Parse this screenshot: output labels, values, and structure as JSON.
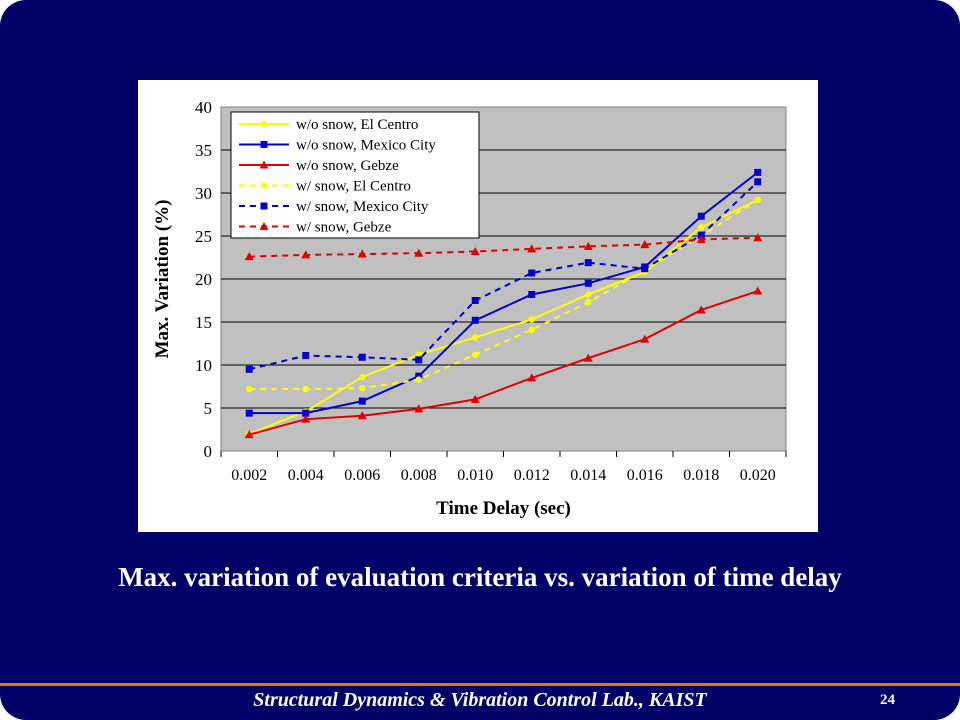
{
  "slide": {
    "caption": "Max. variation of evaluation criteria vs. variation of time delay",
    "footer": "Structural Dynamics & Vibration Control Lab., KAIST",
    "page_number": "24"
  },
  "colors": {
    "background": "#000066",
    "plot_area": "#c0c0c0",
    "footer_line": "#e07810",
    "yellow": "#ffff00",
    "blue": "#0000cc",
    "red": "#dd0000"
  },
  "chart_data": {
    "type": "line",
    "title": "",
    "xlabel": "Time Delay (sec)",
    "ylabel": "Max. Variation (%)",
    "categories": [
      "0.002",
      "0.004",
      "0.006",
      "0.008",
      "0.010",
      "0.012",
      "0.014",
      "0.016",
      "0.018",
      "0.020"
    ],
    "yticks": [
      "0",
      "5",
      "10",
      "15",
      "20",
      "25",
      "30",
      "35",
      "40"
    ],
    "ylim": [
      0,
      40
    ],
    "grid": "horizontal",
    "legend_position": "top-left",
    "series": [
      {
        "name": "w/o snow, El Centro",
        "color": "#ffff00",
        "style": "solid",
        "marker": "circle",
        "values": [
          2.0,
          4.6,
          8.6,
          11.2,
          13.2,
          15.3,
          18.2,
          20.8,
          26.0,
          29.2
        ]
      },
      {
        "name": "w/o snow, Mexico City",
        "color": "#0000cc",
        "style": "solid",
        "marker": "square",
        "values": [
          4.4,
          4.4,
          5.8,
          8.7,
          15.2,
          18.2,
          19.5,
          21.4,
          27.3,
          32.4
        ]
      },
      {
        "name": "w/o snow, Gebze",
        "color": "#dd0000",
        "style": "solid",
        "marker": "triangle",
        "values": [
          1.9,
          3.7,
          4.1,
          4.9,
          6.0,
          8.5,
          10.8,
          13.0,
          16.4,
          18.6
        ]
      },
      {
        "name": "w/ snow, El Centro",
        "color": "#ffff00",
        "style": "dashed",
        "marker": "circle",
        "values": [
          7.2,
          7.2,
          7.3,
          8.3,
          11.2,
          14.1,
          17.3,
          21.0,
          25.0,
          29.2
        ]
      },
      {
        "name": "w/ snow, Mexico City",
        "color": "#0000cc",
        "style": "dashed",
        "marker": "square",
        "values": [
          9.5,
          11.1,
          10.9,
          10.6,
          17.5,
          20.7,
          21.9,
          21.2,
          25.1,
          31.3
        ]
      },
      {
        "name": "w/ snow, Gebze",
        "color": "#dd0000",
        "style": "dashed",
        "marker": "triangle",
        "values": [
          22.6,
          22.8,
          22.9,
          23.0,
          23.2,
          23.5,
          23.8,
          24.0,
          24.6,
          24.8
        ]
      }
    ]
  }
}
